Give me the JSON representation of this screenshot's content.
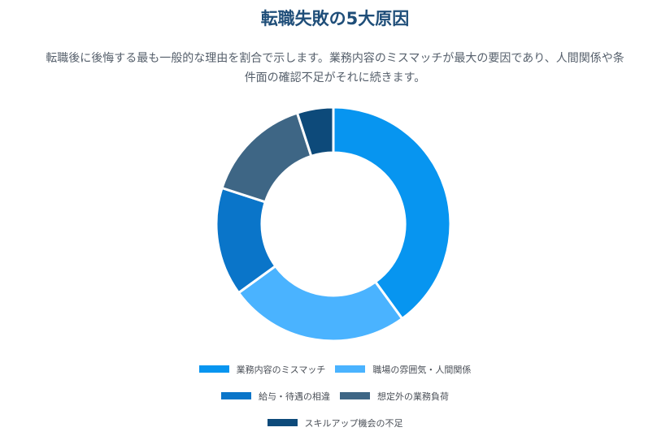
{
  "header": {
    "title": "転職失敗の5大原因",
    "subtitle_line1": "転職後に後悔する最も一般的な理由を割合で示します。業務内容のミスマッチが最大の要因であり、人間関係や条",
    "subtitle_line2": "件面の確認不足がそれに続きます。"
  },
  "chart_data": {
    "type": "doughnut",
    "categories": [
      "業務内容のミスマッチ",
      "職場の雰囲気・人間関係",
      "給与・待遇の相違",
      "想定外の業務負荷",
      "スキルアップ機会の不足"
    ],
    "values": [
      40,
      25,
      15,
      15,
      5
    ],
    "colors": [
      "#0795f0",
      "#4ab3ff",
      "#0a75c9",
      "#3e6685",
      "#0d4a7a"
    ],
    "legend_position": "bottom",
    "title": "",
    "xlabel": "",
    "ylabel": ""
  }
}
